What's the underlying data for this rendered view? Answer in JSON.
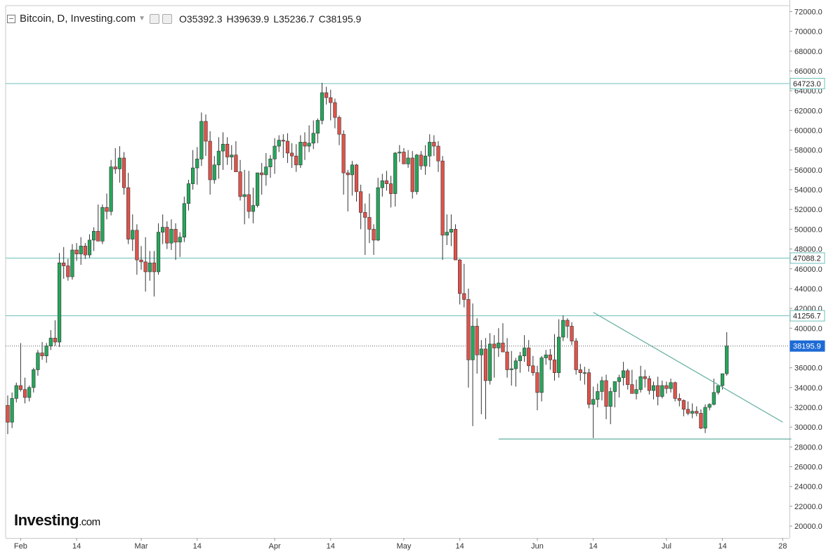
{
  "header": {
    "title": "Bitcoin, D, Investing.com",
    "open": "O35392.3",
    "high": "H39639.9",
    "low": "L35236.7",
    "close": "C38195.9"
  },
  "logo": {
    "main": "Investing",
    "suffix": ".com"
  },
  "colors": {
    "up": "#26a65b",
    "down": "#e0524a",
    "hline": "#6cc0b8",
    "trend": "#5fae9f",
    "current": "#1e6bd6"
  },
  "chart_data": {
    "type": "candlestick",
    "title": "Bitcoin, D, Investing.com",
    "ylim": [
      18800,
      72600
    ],
    "y_ticks": [
      20000,
      22000,
      24000,
      26000,
      28000,
      30000,
      32000,
      34000,
      36000,
      38000,
      40000,
      42000,
      44000,
      46000,
      48000,
      50000,
      52000,
      54000,
      56000,
      58000,
      60000,
      62000,
      64000,
      66000,
      68000,
      70000,
      72000
    ],
    "x_labels": [
      {
        "label": "Feb",
        "index": 3
      },
      {
        "label": "14",
        "index": 16
      },
      {
        "label": "Mar",
        "index": 31
      },
      {
        "label": "14",
        "index": 44
      },
      {
        "label": "Apr",
        "index": 62
      },
      {
        "label": "14",
        "index": 75
      },
      {
        "label": "May",
        "index": 92
      },
      {
        "label": "14",
        "index": 105
      },
      {
        "label": "Jun",
        "index": 123
      },
      {
        "label": "14",
        "index": 136
      },
      {
        "label": "Jul",
        "index": 153
      },
      {
        "label": "14",
        "index": 166
      },
      {
        "label": "28",
        "index": 180
      }
    ],
    "price_tags": [
      {
        "label": "64723.0",
        "value": 64723.0
      },
      {
        "label": "47088.2",
        "value": 47088.2
      },
      {
        "label": "41256.7",
        "value": 41256.7
      },
      {
        "label": "38195.9",
        "value": 38195.9,
        "current": true
      }
    ],
    "horizontal_lines": [
      64723.0,
      47088.2,
      41256.7
    ],
    "trendlines": [
      {
        "from": {
          "index": 136,
          "value": 41600
        },
        "to": {
          "index": 180,
          "value": 30500
        }
      },
      {
        "from": {
          "index": 114,
          "value": 28800
        },
        "to": {
          "index": 182,
          "value": 28800
        }
      }
    ],
    "ohlc_order": [
      "open",
      "high",
      "low",
      "close"
    ],
    "candles": [
      [
        32200,
        33200,
        29300,
        30500
      ],
      [
        30500,
        33500,
        29900,
        32900
      ],
      [
        32900,
        34500,
        32500,
        34200
      ],
      [
        34200,
        38500,
        33600,
        33800
      ],
      [
        33800,
        35000,
        32400,
        33000
      ],
      [
        33000,
        34200,
        32600,
        34000
      ],
      [
        34000,
        36000,
        33500,
        35800
      ],
      [
        35800,
        37800,
        35200,
        37500
      ],
      [
        37500,
        38600,
        36800,
        37200
      ],
      [
        37200,
        38500,
        36500,
        38200
      ],
      [
        38200,
        39800,
        37800,
        39000
      ],
      [
        39000,
        40800,
        38200,
        38600
      ],
      [
        38600,
        47600,
        38100,
        46600
      ],
      [
        46600,
        48200,
        45000,
        46300
      ],
      [
        46300,
        47000,
        44800,
        45200
      ],
      [
        45200,
        48500,
        44900,
        47900
      ],
      [
        47900,
        48600,
        46800,
        47500
      ],
      [
        47500,
        49200,
        46400,
        48300
      ],
      [
        48300,
        48600,
        47000,
        47400
      ],
      [
        47400,
        49500,
        47100,
        48900
      ],
      [
        48900,
        50200,
        47800,
        49800
      ],
      [
        49800,
        52500,
        49100,
        48800
      ],
      [
        48800,
        52500,
        48500,
        52200
      ],
      [
        52200,
        53600,
        51000,
        51800
      ],
      [
        51800,
        57000,
        51400,
        56300
      ],
      [
        56300,
        58200,
        55600,
        56100
      ],
      [
        56100,
        58400,
        54700,
        57200
      ],
      [
        57200,
        57800,
        53500,
        54200
      ],
      [
        54200,
        55700,
        48500,
        49000
      ],
      [
        49000,
        51500,
        47800,
        49900
      ],
      [
        49900,
        50500,
        45400,
        46900
      ],
      [
        46900,
        48300,
        45900,
        46700
      ],
      [
        46700,
        49200,
        43700,
        45700
      ],
      [
        45700,
        47800,
        44800,
        46600
      ],
      [
        46600,
        47800,
        43200,
        45700
      ],
      [
        45700,
        50600,
        45400,
        49700
      ],
      [
        49700,
        51500,
        48500,
        50200
      ],
      [
        50200,
        50800,
        48000,
        48600
      ],
      [
        48600,
        51000,
        47900,
        50000
      ],
      [
        50000,
        50600,
        46900,
        48700
      ],
      [
        48700,
        49700,
        47200,
        49200
      ],
      [
        49200,
        53300,
        48700,
        52600
      ],
      [
        52600,
        55000,
        51900,
        54600
      ],
      [
        54600,
        58000,
        54000,
        56200
      ],
      [
        56200,
        58300,
        54500,
        57100
      ],
      [
        57100,
        61800,
        56400,
        60900
      ],
      [
        60900,
        61600,
        57400,
        58900
      ],
      [
        58900,
        59900,
        53500,
        55000
      ],
      [
        55000,
        57400,
        54600,
        56500
      ],
      [
        56500,
        59300,
        55100,
        57900
      ],
      [
        57900,
        59800,
        56000,
        58600
      ],
      [
        58600,
        59300,
        56500,
        57300
      ],
      [
        57300,
        58500,
        56000,
        57500
      ],
      [
        57500,
        58900,
        55800,
        55800
      ],
      [
        55800,
        57000,
        52900,
        53300
      ],
      [
        53300,
        56000,
        50500,
        53500
      ],
      [
        53500,
        55900,
        51100,
        51800
      ],
      [
        51800,
        54200,
        50600,
        52400
      ],
      [
        52400,
        55700,
        52200,
        55700
      ],
      [
        55700,
        56700,
        53500,
        55500
      ],
      [
        55500,
        57700,
        54400,
        56300
      ],
      [
        56300,
        57500,
        55200,
        57100
      ],
      [
        57100,
        59200,
        55600,
        58400
      ],
      [
        58400,
        59500,
        57800,
        59000
      ],
      [
        59000,
        59600,
        57200,
        58900
      ],
      [
        58900,
        59700,
        56700,
        57700
      ],
      [
        57700,
        58700,
        56200,
        57400
      ],
      [
        57400,
        58600,
        55800,
        56500
      ],
      [
        56500,
        59500,
        56200,
        58800
      ],
      [
        58800,
        59800,
        57000,
        58400
      ],
      [
        58400,
        60500,
        57800,
        58700
      ],
      [
        58700,
        61000,
        58100,
        59700
      ],
      [
        59700,
        61200,
        58700,
        61000
      ],
      [
        61000,
        64800,
        60600,
        63800
      ],
      [
        63800,
        64400,
        62600,
        63300
      ],
      [
        63300,
        64100,
        61000,
        62800
      ],
      [
        62800,
        63200,
        60200,
        61300
      ],
      [
        61300,
        61500,
        58500,
        59600
      ],
      [
        59600,
        60000,
        53500,
        55700
      ],
      [
        55700,
        56000,
        51800,
        55500
      ],
      [
        55500,
        56900,
        53400,
        56500
      ],
      [
        56500,
        56600,
        52800,
        53800
      ],
      [
        53800,
        54500,
        50000,
        51700
      ],
      [
        51700,
        52600,
        47400,
        51200
      ],
      [
        51200,
        53600,
        48600,
        50000
      ],
      [
        50000,
        50500,
        47400,
        48900
      ],
      [
        48900,
        55200,
        48800,
        54200
      ],
      [
        54200,
        55600,
        53300,
        54900
      ],
      [
        54900,
        55900,
        53900,
        54600
      ],
      [
        54600,
        55400,
        52200,
        53600
      ],
      [
        53600,
        57800,
        52300,
        57700
      ],
      [
        57700,
        58500,
        56800,
        57800
      ],
      [
        57800,
        58200,
        56600,
        56600
      ],
      [
        56600,
        58000,
        56200,
        57200
      ],
      [
        57200,
        57900,
        53100,
        53800
      ],
      [
        53800,
        57600,
        53500,
        57500
      ],
      [
        57500,
        57900,
        56000,
        56400
      ],
      [
        56400,
        58500,
        55500,
        57400
      ],
      [
        57400,
        59600,
        56300,
        58800
      ],
      [
        58800,
        59500,
        57400,
        58400
      ],
      [
        58400,
        58900,
        55800,
        56900
      ],
      [
        56900,
        57400,
        46900,
        49400
      ],
      [
        49400,
        51500,
        48400,
        49700
      ],
      [
        49700,
        51500,
        48300,
        50000
      ],
      [
        50000,
        50500,
        47000,
        46900
      ],
      [
        46900,
        47000,
        42400,
        43500
      ],
      [
        43500,
        46500,
        42100,
        42900
      ],
      [
        42900,
        44000,
        34000,
        36800
      ],
      [
        36800,
        42500,
        30100,
        40200
      ],
      [
        40200,
        41000,
        35400,
        37300
      ],
      [
        37300,
        38800,
        31300,
        37900
      ],
      [
        37900,
        39000,
        30800,
        34700
      ],
      [
        34700,
        39500,
        34300,
        38400
      ],
      [
        38400,
        39300,
        35000,
        38000
      ],
      [
        38000,
        40000,
        37100,
        38500
      ],
      [
        38500,
        40500,
        37800,
        37600
      ],
      [
        37600,
        39000,
        35000,
        35800
      ],
      [
        35800,
        37700,
        34200,
        35900
      ],
      [
        35900,
        37000,
        34100,
        36700
      ],
      [
        36700,
        37600,
        35500,
        37200
      ],
      [
        37200,
        39300,
        36600,
        38000
      ],
      [
        38000,
        38800,
        35600,
        36200
      ],
      [
        36200,
        37200,
        35200,
        35500
      ],
      [
        35500,
        36200,
        31700,
        33500
      ],
      [
        33500,
        37200,
        32600,
        37000
      ],
      [
        37000,
        37800,
        36300,
        37300
      ],
      [
        37300,
        37900,
        35800,
        36800
      ],
      [
        36800,
        39400,
        34700,
        35500
      ],
      [
        35500,
        40900,
        35000,
        39100
      ],
      [
        39100,
        41300,
        38700,
        40800
      ],
      [
        40800,
        41000,
        39000,
        40200
      ],
      [
        40200,
        40600,
        38300,
        38700
      ],
      [
        38700,
        39000,
        35300,
        35800
      ],
      [
        35800,
        36400,
        34700,
        35500
      ],
      [
        35500,
        36100,
        34300,
        35500
      ],
      [
        35500,
        35900,
        31900,
        32300
      ],
      [
        32300,
        34100,
        28900,
        32800
      ],
      [
        32800,
        34400,
        32000,
        33600
      ],
      [
        33600,
        35100,
        32700,
        34700
      ],
      [
        34700,
        35300,
        30800,
        32100
      ],
      [
        32100,
        34000,
        30300,
        33600
      ],
      [
        33600,
        34100,
        32000,
        34600
      ],
      [
        34600,
        35300,
        33000,
        35000
      ],
      [
        35000,
        36600,
        34200,
        35700
      ],
      [
        35700,
        35900,
        33800,
        34300
      ],
      [
        34300,
        35800,
        33400,
        33400
      ],
      [
        33400,
        34800,
        32800,
        33800
      ],
      [
        33800,
        36200,
        33500,
        35100
      ],
      [
        35100,
        35800,
        34000,
        34900
      ],
      [
        34900,
        35200,
        33300,
        33700
      ],
      [
        33700,
        34600,
        32800,
        34200
      ],
      [
        34200,
        35100,
        32200,
        33100
      ],
      [
        33100,
        34700,
        32900,
        34200
      ],
      [
        34200,
        34600,
        33400,
        33900
      ],
      [
        33900,
        34900,
        33500,
        34500
      ],
      [
        34500,
        34600,
        32600,
        32900
      ],
      [
        32900,
        33400,
        32100,
        32700
      ],
      [
        32700,
        32800,
        31100,
        31800
      ],
      [
        31800,
        32600,
        31200,
        31400
      ],
      [
        31400,
        32400,
        30900,
        31600
      ],
      [
        31600,
        32100,
        31100,
        31400
      ],
      [
        31400,
        31800,
        29800,
        29900
      ],
      [
        29900,
        32300,
        29400,
        32000
      ],
      [
        32000,
        32400,
        31700,
        32300
      ],
      [
        32300,
        34900,
        32200,
        33500
      ],
      [
        33500,
        34000,
        33300,
        34200
      ],
      [
        34200,
        35400,
        33800,
        35400
      ],
      [
        35400,
        39600,
        35200,
        38200
      ]
    ]
  }
}
